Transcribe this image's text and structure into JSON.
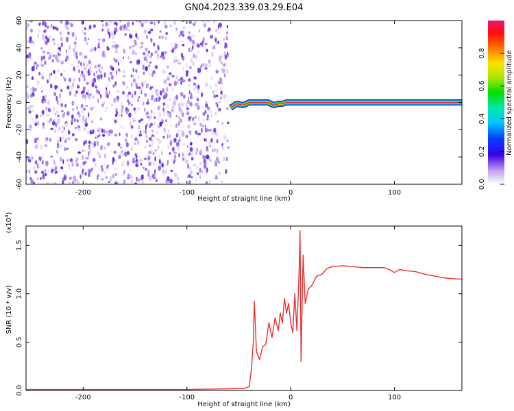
{
  "figure": {
    "title": "GN04.2023.339.03.29.E04"
  },
  "chart_data": [
    {
      "type": "heatmap",
      "title": "GN04.2023.339.03.29.E04",
      "xlabel": "Height of straight line (km)",
      "ylabel": "Frequency (Hz)",
      "xlim": [
        -255,
        165
      ],
      "ylim": [
        -60,
        60
      ],
      "x_ticks": [
        -200,
        -100,
        0,
        100
      ],
      "x_tick_labels": [
        "-200",
        "-100",
        "0",
        "100"
      ],
      "y_ticks": [
        -60,
        -40,
        -20,
        0,
        20,
        40,
        60
      ],
      "y_tick_labels": [
        "-60",
        "-40",
        "-20",
        "0",
        "20",
        "40",
        "60"
      ],
      "noise_region_x": [
        -255,
        -60
      ],
      "signal_line": {
        "x": [
          -58,
          -52,
          -46,
          -40,
          -34,
          -28,
          -22,
          -16,
          -12,
          -8,
          -4,
          0,
          165
        ],
        "y": [
          -4,
          -1,
          -2,
          0,
          0,
          0,
          0,
          -2,
          -1,
          -1,
          0,
          0,
          0
        ]
      },
      "colorbar": {
        "label": "Normalized spectral amplitude",
        "range": [
          0,
          1
        ],
        "ticks": [
          0.0,
          0.2,
          0.4,
          0.6,
          0.8
        ],
        "tick_labels": [
          "0.0",
          "0.2",
          "0.4",
          "0.6",
          "0.8"
        ]
      }
    },
    {
      "type": "line",
      "xlabel": "Height of straight line (km)",
      "ylabel": "SNR (10 * v/v)",
      "y_scale_label": "(x10",
      "y_scale_exp": "4",
      "y_scale_close": ")",
      "xlim": [
        -255,
        165
      ],
      "ylim": [
        0,
        1.7
      ],
      "x_ticks": [
        -200,
        -100,
        0,
        100
      ],
      "x_tick_labels": [
        "-200",
        "-100",
        "0",
        "100"
      ],
      "y_ticks": [
        0.0,
        0.5,
        1.0,
        1.5
      ],
      "y_tick_labels": [
        "0.0",
        "0.5",
        "1.0",
        "1.5"
      ],
      "color": "#e8302f",
      "series": [
        {
          "name": "SNR",
          "x": [
            -255,
            -200,
            -100,
            -45,
            -40,
            -38,
            -36,
            -35,
            -33,
            -30,
            -27,
            -24,
            -21,
            -18,
            -15,
            -12,
            -10,
            -8,
            -6,
            -4,
            -2,
            0,
            2,
            4,
            6,
            8,
            9,
            10,
            12,
            14,
            17,
            20,
            25,
            30,
            35,
            40,
            50,
            60,
            70,
            80,
            90,
            95,
            100,
            105,
            110,
            120,
            130,
            140,
            150,
            165
          ],
          "y": [
            0.01,
            0.01,
            0.01,
            0.02,
            0.04,
            0.2,
            0.5,
            0.92,
            0.4,
            0.32,
            0.45,
            0.48,
            0.7,
            0.55,
            0.75,
            0.62,
            0.8,
            0.7,
            0.95,
            0.8,
            0.9,
            0.7,
            0.6,
            1.0,
            0.62,
            1.2,
            1.65,
            0.3,
            1.4,
            0.9,
            1.05,
            1.08,
            1.18,
            1.2,
            1.26,
            1.28,
            1.29,
            1.28,
            1.27,
            1.27,
            1.27,
            1.25,
            1.22,
            1.25,
            1.24,
            1.23,
            1.2,
            1.18,
            1.16,
            1.15
          ]
        }
      ]
    }
  ]
}
